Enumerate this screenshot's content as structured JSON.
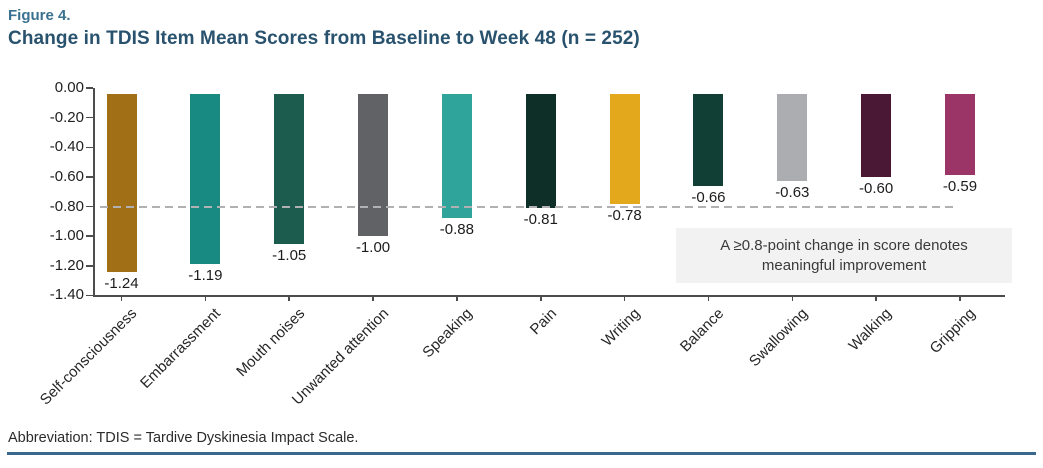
{
  "figure_label": "Figure 4.",
  "title": "Change in TDIS Item Mean Scores from Baseline to Week 48 (n = 252)",
  "annotation": {
    "line1": "A ≥0.8-point change in score denotes",
    "line2": "meaningful improvement"
  },
  "footer": {
    "abbreviation": "Abbreviation: TDIS = Tardive Dyskinesia Impact Scale."
  },
  "colors": {
    "figure_label": "#3B7190",
    "title": "#29526E",
    "footer_rule": "#3A688C",
    "axis": "#4d4d4d",
    "reference_line": "#b1b1b4",
    "annotation_bg": "#f2f2f3"
  },
  "chart_data": {
    "type": "bar",
    "title": "Change in TDIS Item Mean Scores from Baseline to Week 48 (n = 252)",
    "categories": [
      "Self-consciousness",
      "Embarrassment",
      "Mouth noises",
      "Unwanted attention",
      "Speaking",
      "Pain",
      "Writing",
      "Balance",
      "Swallowing",
      "Walking",
      "Gripping"
    ],
    "values": [
      -1.24,
      -1.19,
      -1.05,
      -1.0,
      -0.88,
      -0.81,
      -0.78,
      -0.66,
      -0.63,
      -0.6,
      -0.59
    ],
    "value_labels": [
      "-1.24",
      "-1.19",
      "-1.05",
      "-1.00",
      "-0.88",
      "-0.81",
      "-0.78",
      "-0.66",
      "-0.63",
      "-0.60",
      "-0.59"
    ],
    "bar_colors": [
      "#A06F16",
      "#188A82",
      "#1C5C4E",
      "#606266",
      "#2EA49A",
      "#0E2F28",
      "#E3A81C",
      "#123F35",
      "#ABADB0",
      "#4A1734",
      "#9B3467"
    ],
    "xlabel": "",
    "ylabel": "",
    "ylim": [
      -1.4,
      0.0
    ],
    "yticks": [
      "0.00",
      "-0.20",
      "-0.40",
      "-0.60",
      "-0.80",
      "-1.00",
      "-1.20",
      "-1.40"
    ],
    "ytick_step": 0.2,
    "grid": false,
    "legend": "none",
    "reference_line": {
      "value": -0.8,
      "style": "dashed",
      "meaning": "≥0.8-point change = meaningful improvement"
    }
  }
}
